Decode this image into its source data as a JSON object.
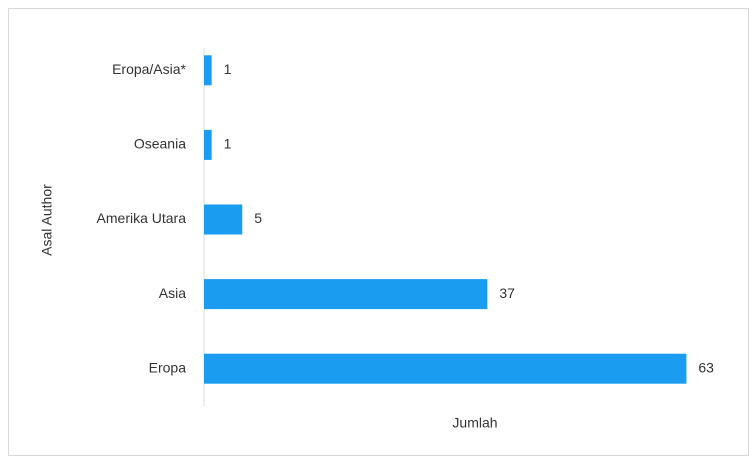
{
  "chart_data": {
    "type": "bar",
    "orientation": "horizontal",
    "categories": [
      "Eropa/Asia*",
      "Oseania",
      "Amerika Utara",
      "Asia",
      "Eropa"
    ],
    "values": [
      1,
      1,
      5,
      37,
      63
    ],
    "color": "#1a9cf0",
    "xlabel": "Jumlah",
    "ylabel": "Asal Author",
    "xlim": [
      0,
      70
    ],
    "grid": false
  }
}
